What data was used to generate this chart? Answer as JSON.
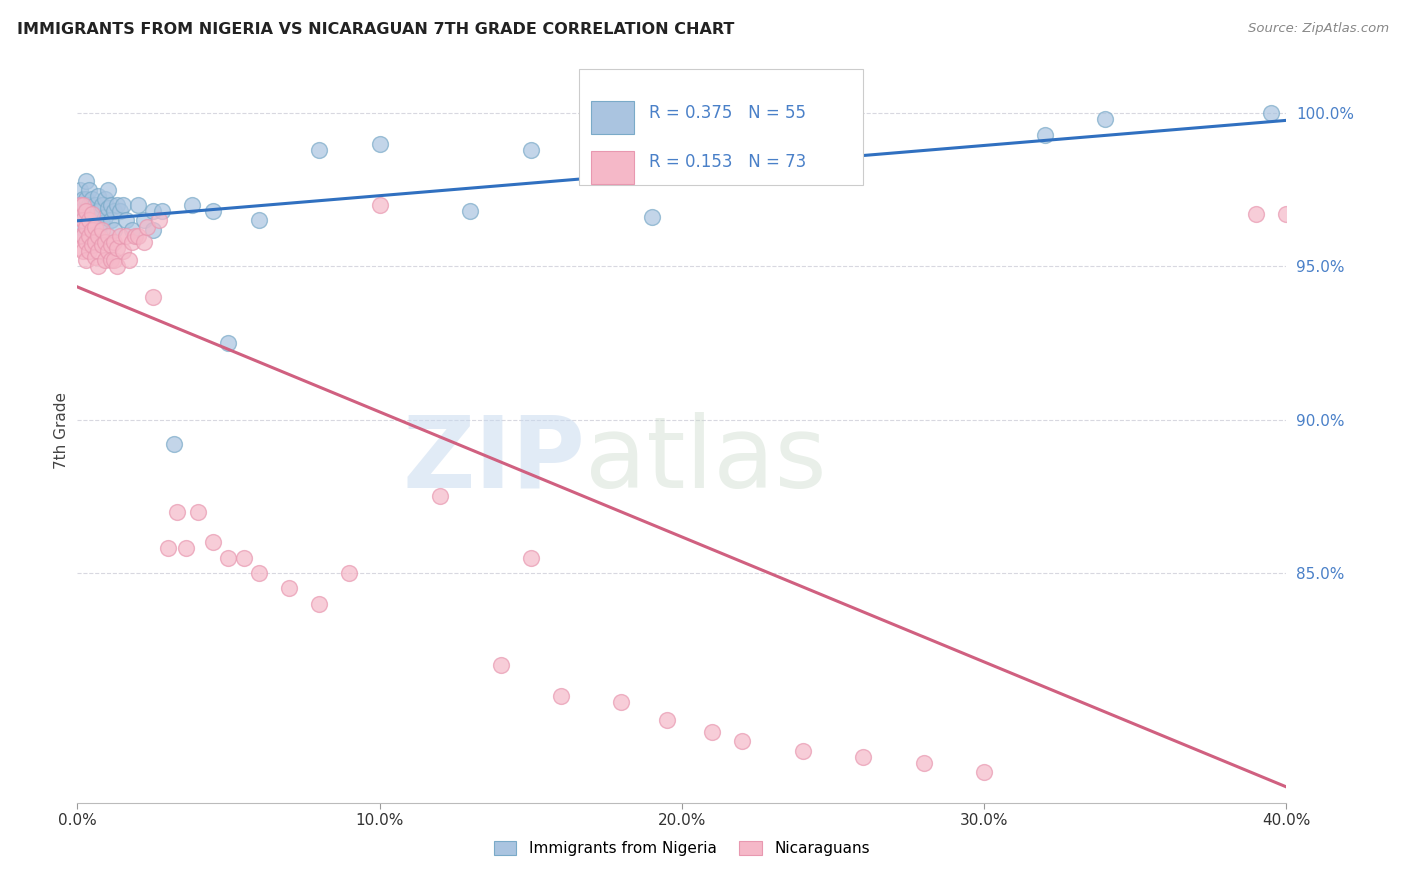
{
  "title": "IMMIGRANTS FROM NIGERIA VS NICARAGUAN 7TH GRADE CORRELATION CHART",
  "source": "Source: ZipAtlas.com",
  "ylabel": "7th Grade",
  "ytick_labels": [
    "100.0%",
    "95.0%",
    "90.0%",
    "85.0%"
  ],
  "ytick_values": [
    1.0,
    0.95,
    0.9,
    0.85
  ],
  "xtick_labels": [
    "0.0%",
    "10.0%",
    "20.0%",
    "30.0%",
    "40.0%"
  ],
  "xtick_values": [
    0.0,
    0.1,
    0.2,
    0.3,
    0.4
  ],
  "xlim": [
    0.0,
    0.4
  ],
  "ylim": [
    0.775,
    1.018
  ],
  "blue_R": 0.375,
  "blue_N": 55,
  "pink_R": 0.153,
  "pink_N": 73,
  "blue_color": "#aac4e0",
  "pink_color": "#f5b8c8",
  "blue_edge_color": "#7aaac8",
  "pink_edge_color": "#e898b0",
  "blue_line_color": "#3070c0",
  "pink_line_color": "#d06080",
  "legend_label_blue": "Immigrants from Nigeria",
  "legend_label_pink": "Nicaraguans",
  "watermark_zip": "ZIP",
  "watermark_atlas": "atlas",
  "background_color": "#ffffff",
  "grid_color": "#d8d8e0",
  "blue_x": [
    0.001,
    0.001,
    0.001,
    0.002,
    0.002,
    0.002,
    0.003,
    0.003,
    0.003,
    0.003,
    0.004,
    0.004,
    0.004,
    0.005,
    0.005,
    0.005,
    0.006,
    0.006,
    0.006,
    0.007,
    0.007,
    0.007,
    0.008,
    0.008,
    0.009,
    0.009,
    0.01,
    0.01,
    0.011,
    0.011,
    0.012,
    0.012,
    0.013,
    0.014,
    0.015,
    0.016,
    0.018,
    0.02,
    0.022,
    0.025,
    0.025,
    0.028,
    0.032,
    0.038,
    0.045,
    0.05,
    0.06,
    0.08,
    0.1,
    0.13,
    0.15,
    0.19,
    0.32,
    0.34,
    0.395
  ],
  "blue_y": [
    0.975,
    0.968,
    0.963,
    0.972,
    0.967,
    0.96,
    0.978,
    0.972,
    0.968,
    0.964,
    0.975,
    0.97,
    0.965,
    0.972,
    0.967,
    0.962,
    0.97,
    0.966,
    0.96,
    0.973,
    0.968,
    0.963,
    0.97,
    0.964,
    0.972,
    0.966,
    0.975,
    0.969,
    0.97,
    0.965,
    0.968,
    0.962,
    0.97,
    0.968,
    0.97,
    0.965,
    0.962,
    0.97,
    0.965,
    0.968,
    0.962,
    0.968,
    0.892,
    0.97,
    0.968,
    0.925,
    0.965,
    0.988,
    0.99,
    0.968,
    0.988,
    0.966,
    0.993,
    0.998,
    1.0
  ],
  "pink_x": [
    0.001,
    0.001,
    0.001,
    0.001,
    0.002,
    0.002,
    0.002,
    0.002,
    0.003,
    0.003,
    0.003,
    0.003,
    0.004,
    0.004,
    0.004,
    0.005,
    0.005,
    0.005,
    0.006,
    0.006,
    0.006,
    0.007,
    0.007,
    0.007,
    0.008,
    0.008,
    0.009,
    0.009,
    0.01,
    0.01,
    0.011,
    0.011,
    0.012,
    0.012,
    0.013,
    0.013,
    0.014,
    0.015,
    0.016,
    0.017,
    0.018,
    0.019,
    0.02,
    0.022,
    0.023,
    0.025,
    0.027,
    0.03,
    0.033,
    0.036,
    0.04,
    0.045,
    0.05,
    0.055,
    0.06,
    0.07,
    0.08,
    0.09,
    0.1,
    0.12,
    0.14,
    0.15,
    0.16,
    0.18,
    0.195,
    0.21,
    0.22,
    0.24,
    0.26,
    0.28,
    0.3,
    0.39,
    0.4
  ],
  "pink_y": [
    0.97,
    0.966,
    0.96,
    0.956,
    0.97,
    0.965,
    0.96,
    0.955,
    0.968,
    0.963,
    0.958,
    0.952,
    0.965,
    0.96,
    0.955,
    0.967,
    0.962,
    0.957,
    0.963,
    0.958,
    0.953,
    0.96,
    0.955,
    0.95,
    0.962,
    0.957,
    0.958,
    0.952,
    0.96,
    0.955,
    0.957,
    0.952,
    0.958,
    0.952,
    0.956,
    0.95,
    0.96,
    0.955,
    0.96,
    0.952,
    0.958,
    0.96,
    0.96,
    0.958,
    0.963,
    0.94,
    0.965,
    0.858,
    0.87,
    0.858,
    0.87,
    0.86,
    0.855,
    0.855,
    0.85,
    0.845,
    0.84,
    0.85,
    0.97,
    0.875,
    0.82,
    0.855,
    0.81,
    0.808,
    0.802,
    0.798,
    0.795,
    0.792,
    0.79,
    0.788,
    0.785,
    0.967,
    0.967
  ]
}
